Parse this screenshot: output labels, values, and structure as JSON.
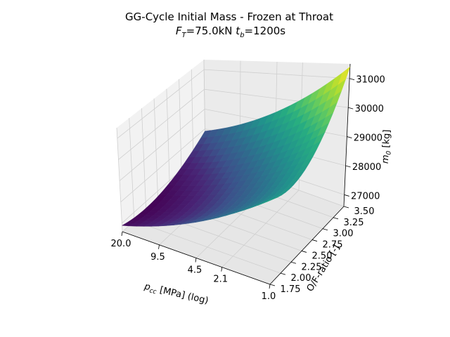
{
  "chart_data": {
    "type": "surface3d",
    "title": "GG-Cycle Initial Mass - Frozen at Throat",
    "subtitle_parts": {
      "f_symbol": "F",
      "f_sub": "T",
      "f_value": "=75.0kN ",
      "t_symbol": "t",
      "t_sub": "b",
      "t_value": "=1200s"
    },
    "xlabel_parts": {
      "symbol": "p",
      "sub": "cc",
      "rest": " [MPa] (log)"
    },
    "ylabel": "O/F-ratio [-]",
    "zlabel_parts": {
      "symbol": "m",
      "sub": "0",
      "rest": " [kg]"
    },
    "x_ticks": [
      {
        "value": 0.0,
        "label": "1.0"
      },
      {
        "value": 0.325,
        "label": "2.1"
      },
      {
        "value": 0.5,
        "label": "4.5"
      },
      {
        "value": 0.75,
        "label": "9.5"
      },
      {
        "value": 1.0,
        "label": "20.0"
      }
    ],
    "y_ticks": [
      "1.75",
      "2.00",
      "2.25",
      "2.50",
      "2.75",
      "3.00",
      "3.25",
      "3.50"
    ],
    "y_range": [
      1.75,
      3.5
    ],
    "z_ticks": [
      "27000",
      "28000",
      "29000",
      "30000",
      "31000"
    ],
    "z_range": [
      26600,
      31500
    ],
    "x_values_mpa": [
      1.0,
      20.0
    ],
    "colormap": "viridis",
    "surface_summary": {
      "min_mass_kg": 26700,
      "min_at_pcc_mpa": 20.0,
      "min_at_of_ratio": 2.25,
      "max_mass_kg": 31400,
      "max_at_pcc_mpa": 1.0,
      "max_at_of_ratio": 3.5
    }
  }
}
